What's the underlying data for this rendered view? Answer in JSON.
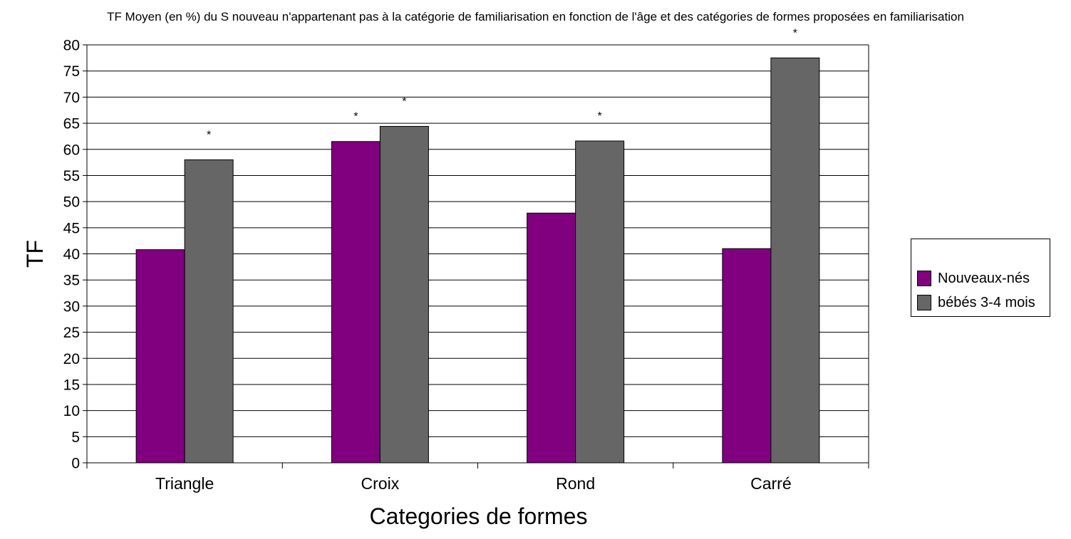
{
  "chart_data": {
    "type": "bar",
    "title": "TF Moyen (en %) du S nouveau n'appartenant pas à la catégorie de familiarisation en fonction de l'âge et des catégories de formes proposées en familiarisation",
    "xlabel": "Categories de formes",
    "ylabel": "TF",
    "categories": [
      "Triangle",
      "Croix",
      "Rond",
      "Carré"
    ],
    "series": [
      {
        "name": "Nouveaux-nés",
        "color": "#800080",
        "values": [
          40.8,
          61.5,
          47.8,
          41.0
        ]
      },
      {
        "name": "bébés 3-4 mois",
        "color": "#666666",
        "values": [
          58.0,
          64.4,
          61.6,
          77.5
        ]
      }
    ],
    "annotations": [
      {
        "category": "Triangle",
        "series": "bébés 3-4 mois",
        "text": "*"
      },
      {
        "category": "Croix",
        "series": "Nouveaux-nés",
        "text": "*"
      },
      {
        "category": "Croix",
        "series": "bébés 3-4 mois",
        "text": "*"
      },
      {
        "category": "Rond",
        "series": "bébés 3-4 mois",
        "text": "*"
      },
      {
        "category": "Carré",
        "series": "bébés 3-4 mois",
        "text": "*"
      }
    ],
    "ylim": [
      0,
      80
    ],
    "yticks": [
      0,
      5,
      10,
      15,
      20,
      25,
      30,
      35,
      40,
      45,
      50,
      55,
      60,
      65,
      70,
      75,
      80
    ],
    "grid": true,
    "legend_position": "right"
  }
}
